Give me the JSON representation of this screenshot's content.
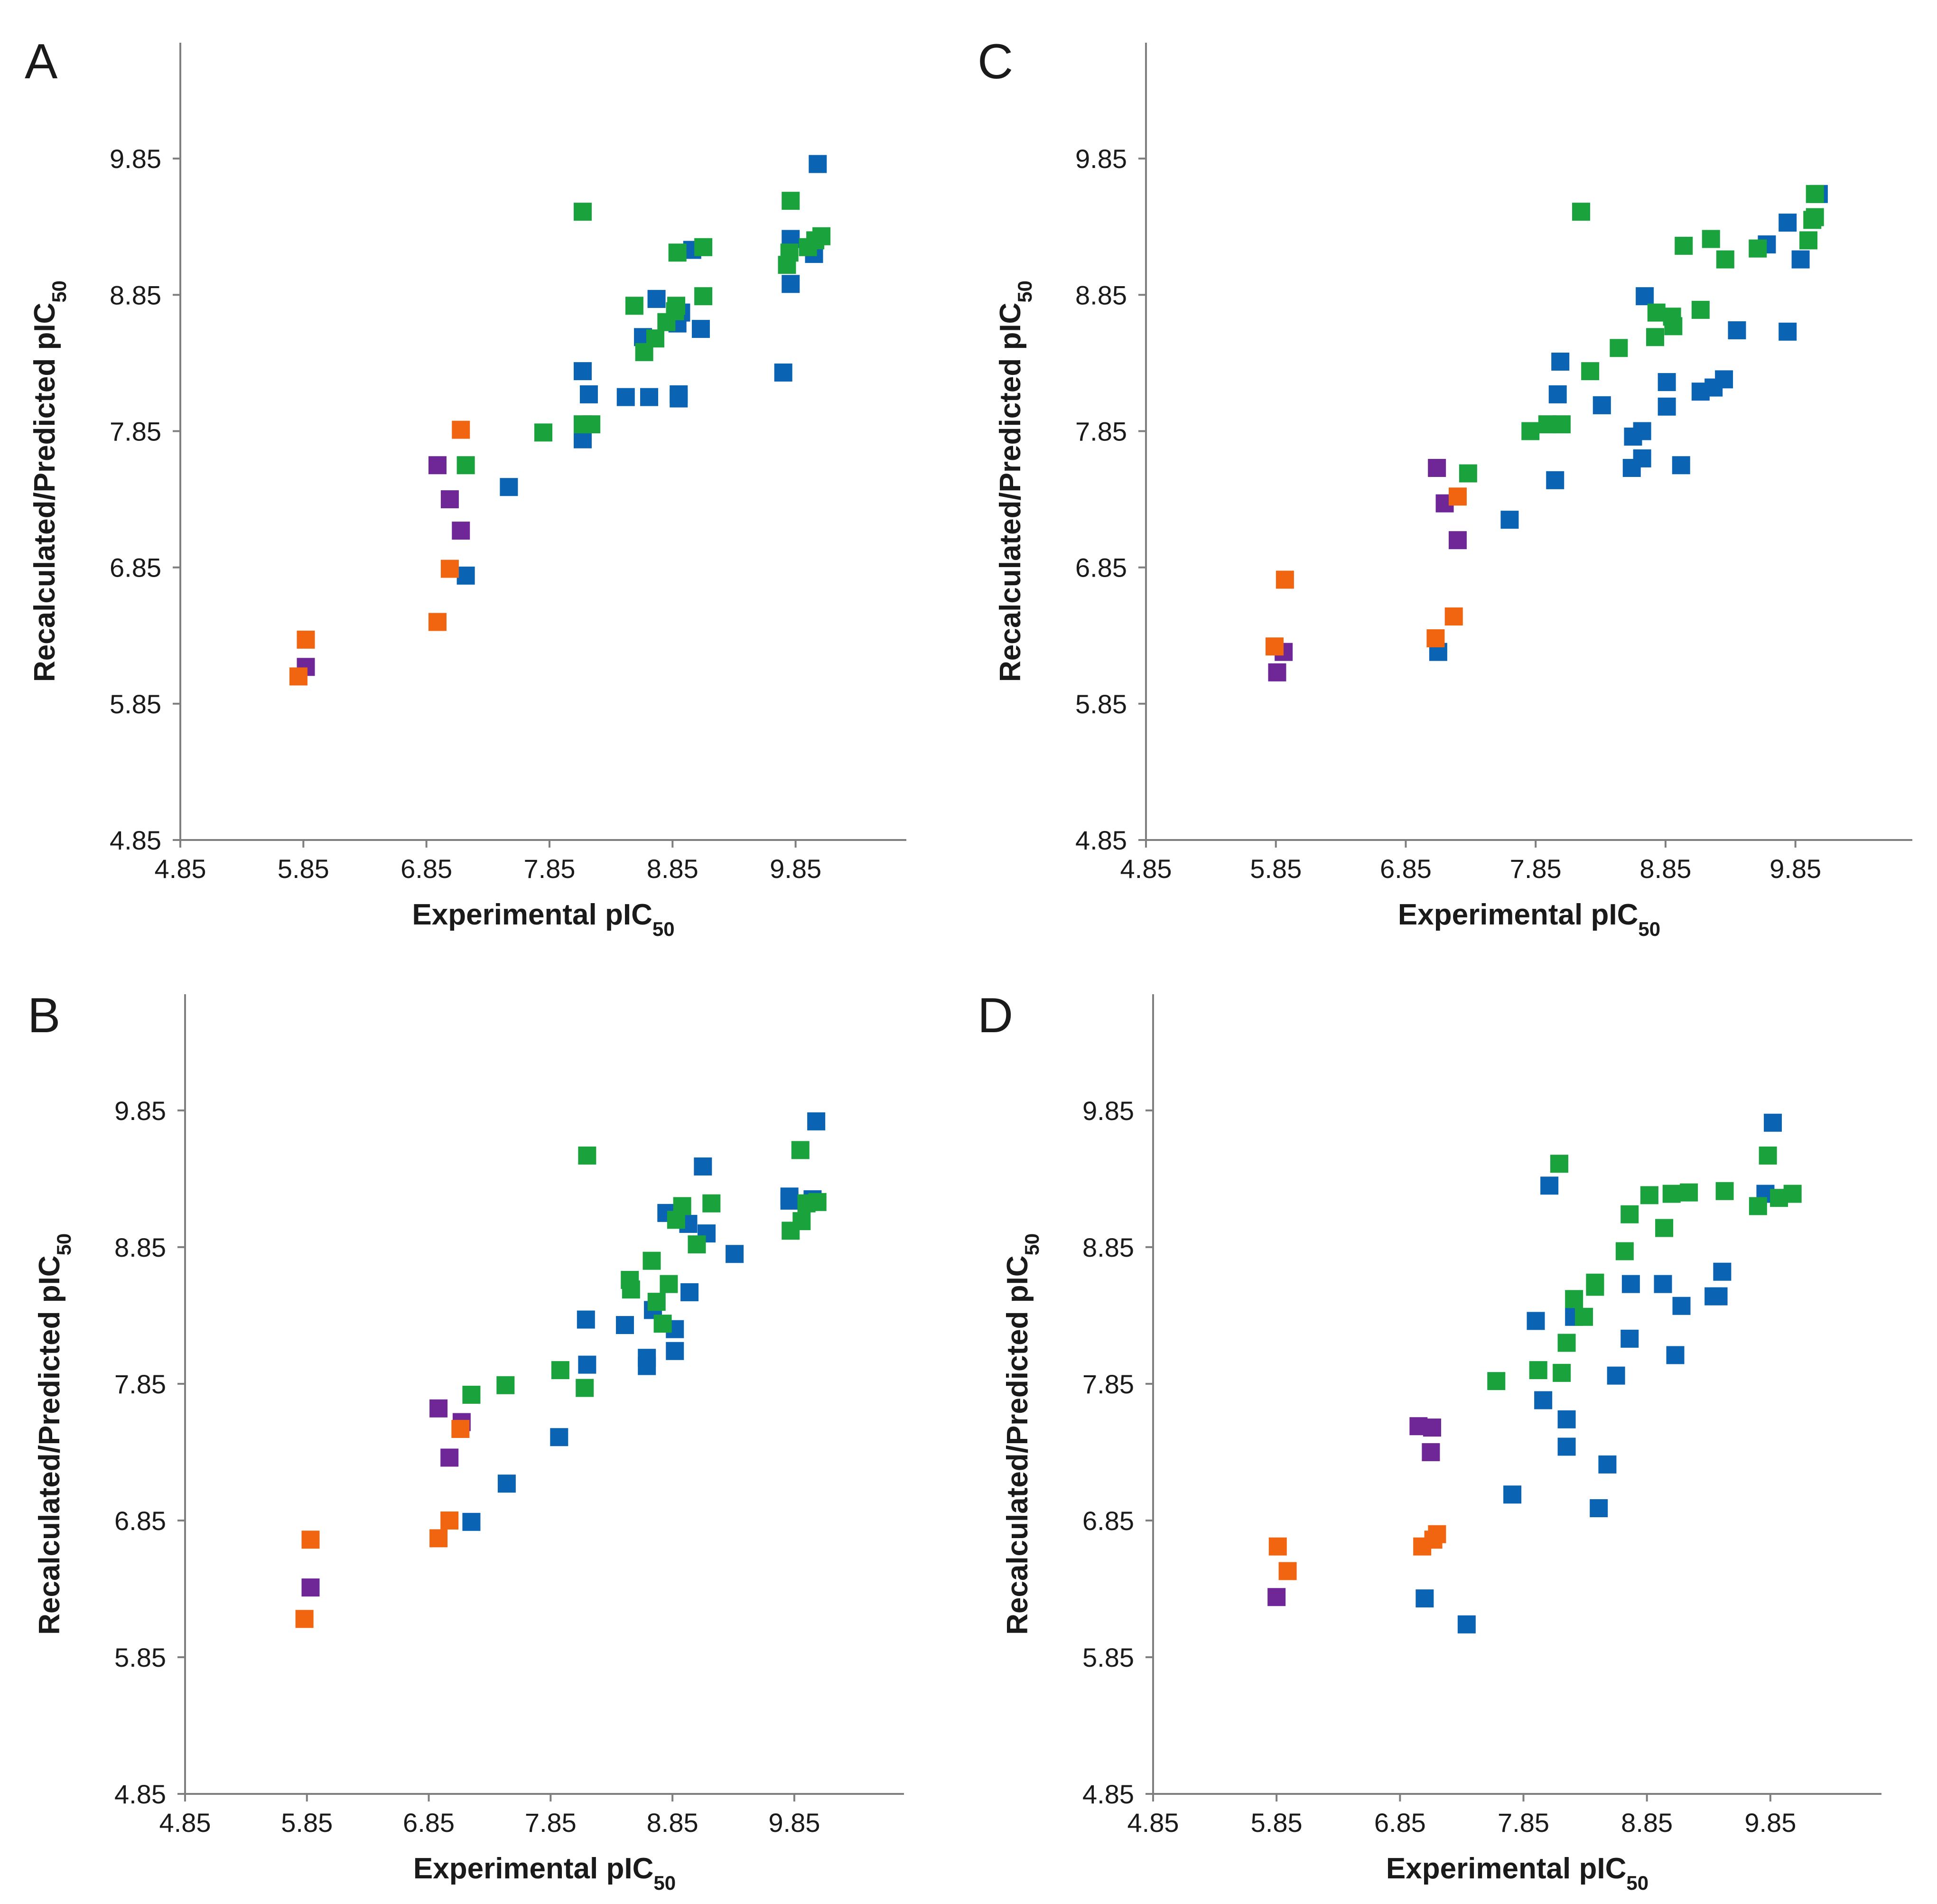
{
  "colors": {
    "blue": "#0b63b3",
    "green": "#1aa33c",
    "purple": "#6f2797",
    "orange": "#f26510"
  },
  "chart_data": [
    {
      "panel": "A",
      "type": "scatter",
      "title": "",
      "xlabel": "Experimental pIC",
      "xlabel_sub": "50",
      "ylabel": "Recalculated/Predicted pIC",
      "ylabel_sub": "50",
      "xlim": [
        4.85,
        10.75
      ],
      "ylim": [
        4.85,
        10.7
      ],
      "xticks": [
        "4.85",
        "5.85",
        "6.85",
        "7.85",
        "8.85",
        "9.85"
      ],
      "yticks": [
        "4.85",
        "5.85",
        "6.85",
        "7.85",
        "8.85",
        "9.85"
      ],
      "series": [
        {
          "name": "blue",
          "color": "#0b63b3",
          "points": [
            [
              10.03,
              9.81
            ],
            [
              9.81,
              9.26
            ],
            [
              10.0,
              9.15
            ],
            [
              9.81,
              8.93
            ],
            [
              9.01,
              9.18
            ],
            [
              8.72,
              8.82
            ],
            [
              8.92,
              8.72
            ],
            [
              9.08,
              8.6
            ],
            [
              8.61,
              8.54
            ],
            [
              8.89,
              8.64
            ],
            [
              9.75,
              8.28
            ],
            [
              8.12,
              8.29
            ],
            [
              8.17,
              8.12
            ],
            [
              8.47,
              8.1
            ],
            [
              8.66,
              8.1
            ],
            [
              8.9,
              8.12
            ],
            [
              8.9,
              8.09
            ],
            [
              8.12,
              7.79
            ],
            [
              7.52,
              7.44
            ],
            [
              7.17,
              6.79
            ]
          ]
        },
        {
          "name": "green",
          "color": "#1aa33c",
          "points": [
            [
              8.12,
              9.46
            ],
            [
              9.81,
              9.54
            ],
            [
              10.06,
              9.28
            ],
            [
              10.01,
              9.25
            ],
            [
              9.95,
              9.2
            ],
            [
              9.1,
              9.2
            ],
            [
              8.89,
              9.16
            ],
            [
              9.8,
              9.16
            ],
            [
              9.78,
              9.07
            ],
            [
              8.54,
              8.77
            ],
            [
              9.1,
              8.84
            ],
            [
              8.88,
              8.77
            ],
            [
              8.87,
              8.73
            ],
            [
              8.8,
              8.65
            ],
            [
              8.71,
              8.53
            ],
            [
              8.62,
              8.43
            ],
            [
              8.19,
              7.9
            ],
            [
              8.12,
              7.9
            ],
            [
              7.8,
              7.84
            ],
            [
              7.17,
              7.6
            ]
          ]
        },
        {
          "name": "purple",
          "color": "#6f2797",
          "points": [
            [
              5.87,
              6.12
            ],
            [
              6.94,
              7.6
            ],
            [
              7.04,
              7.35
            ],
            [
              7.13,
              7.12
            ]
          ]
        },
        {
          "name": "orange",
          "color": "#f26510",
          "points": [
            [
              5.87,
              6.32
            ],
            [
              5.81,
              6.05
            ],
            [
              7.13,
              7.86
            ],
            [
              7.04,
              6.84
            ],
            [
              6.94,
              6.45
            ]
          ]
        }
      ]
    },
    {
      "panel": "C",
      "type": "scatter",
      "title": "",
      "xlabel": "Experimental pIC",
      "xlabel_sub": "50",
      "ylabel": "Recalculated/Predicted pIC",
      "ylabel_sub": "50",
      "xlim": [
        4.85,
        10.75
      ],
      "ylim": [
        4.85,
        10.7
      ],
      "xticks": [
        "4.85",
        "5.85",
        "6.85",
        "7.85",
        "8.85",
        "9.85"
      ],
      "yticks": [
        "4.85",
        "5.85",
        "6.85",
        "7.85",
        "8.85",
        "9.85"
      ],
      "series": [
        {
          "name": "blue",
          "color": "#0b63b3",
          "points": [
            [
              10.03,
              9.59
            ],
            [
              9.79,
              9.38
            ],
            [
              9.63,
              9.22
            ],
            [
              9.89,
              9.11
            ],
            [
              9.79,
              8.58
            ],
            [
              8.69,
              8.84
            ],
            [
              9.4,
              8.59
            ],
            [
              8.04,
              8.36
            ],
            [
              9.3,
              8.23
            ],
            [
              9.22,
              8.17
            ],
            [
              8.86,
              8.21
            ],
            [
              9.12,
              8.14
            ],
            [
              8.86,
              8.03
            ],
            [
              8.36,
              8.04
            ],
            [
              8.02,
              8.12
            ],
            [
              8.6,
              7.81
            ],
            [
              8.67,
              7.85
            ],
            [
              8.67,
              7.65
            ],
            [
              8.97,
              7.6
            ],
            [
              8.59,
              7.58
            ],
            [
              8.0,
              7.49
            ],
            [
              7.65,
              7.2
            ],
            [
              7.1,
              6.23
            ]
          ]
        },
        {
          "name": "green",
          "color": "#1aa33c",
          "points": [
            [
              8.2,
              9.46
            ],
            [
              10.0,
              9.59
            ],
            [
              10.0,
              9.42
            ],
            [
              9.98,
              9.4
            ],
            [
              9.95,
              9.25
            ],
            [
              9.2,
              9.26
            ],
            [
              8.99,
              9.21
            ],
            [
              9.56,
              9.19
            ],
            [
              9.31,
              9.11
            ],
            [
              8.78,
              8.72
            ],
            [
              9.12,
              8.74
            ],
            [
              8.9,
              8.69
            ],
            [
              8.91,
              8.62
            ],
            [
              8.77,
              8.54
            ],
            [
              8.49,
              8.46
            ],
            [
              8.27,
              8.29
            ],
            [
              8.05,
              7.9
            ],
            [
              7.94,
              7.9
            ],
            [
              7.81,
              7.85
            ],
            [
              7.33,
              7.54
            ]
          ]
        },
        {
          "name": "purple",
          "color": "#6f2797",
          "points": [
            [
              5.91,
              6.23
            ],
            [
              5.86,
              6.08
            ],
            [
              7.09,
              7.58
            ],
            [
              7.15,
              7.32
            ],
            [
              7.25,
              7.05
            ]
          ]
        },
        {
          "name": "orange",
          "color": "#f26510",
          "points": [
            [
              5.92,
              6.76
            ],
            [
              5.84,
              6.27
            ],
            [
              7.22,
              6.49
            ],
            [
              7.08,
              6.33
            ],
            [
              7.25,
              7.37
            ]
          ]
        }
      ]
    },
    {
      "panel": "B",
      "type": "scatter",
      "title": "",
      "xlabel": "Experimental pIC",
      "xlabel_sub": "50",
      "ylabel": "Recalculated/Predicted pIC",
      "ylabel_sub": "50",
      "xlim": [
        4.85,
        10.75
      ],
      "ylim": [
        4.85,
        10.7
      ],
      "xticks": [
        "4.85",
        "5.85",
        "6.85",
        "7.85",
        "8.85",
        "9.85"
      ],
      "yticks": [
        "4.85",
        "5.85",
        "6.85",
        "7.85",
        "8.85",
        "9.85"
      ],
      "series": [
        {
          "name": "blue",
          "color": "#0b63b3",
          "points": [
            [
              10.03,
              9.77
            ],
            [
              9.81,
              9.22
            ],
            [
              10.0,
              9.2
            ],
            [
              9.81,
              9.19
            ],
            [
              9.1,
              9.44
            ],
            [
              8.8,
              9.1
            ],
            [
              8.98,
              9.02
            ],
            [
              9.13,
              8.95
            ],
            [
              9.36,
              8.8
            ],
            [
              8.99,
              8.52
            ],
            [
              8.69,
              8.39
            ],
            [
              8.46,
              8.28
            ],
            [
              8.87,
              8.25
            ],
            [
              8.87,
              8.09
            ],
            [
              8.64,
              8.04
            ],
            [
              8.64,
              7.98
            ],
            [
              8.15,
              7.99
            ],
            [
              8.14,
              8.32
            ],
            [
              7.92,
              7.46
            ],
            [
              7.49,
              7.12
            ],
            [
              7.2,
              6.84
            ]
          ]
        },
        {
          "name": "green",
          "color": "#1aa33c",
          "points": [
            [
              8.15,
              9.52
            ],
            [
              9.9,
              9.56
            ],
            [
              10.04,
              9.18
            ],
            [
              9.95,
              9.17
            ],
            [
              9.91,
              9.04
            ],
            [
              9.17,
              9.17
            ],
            [
              8.93,
              9.15
            ],
            [
              8.88,
              9.05
            ],
            [
              9.82,
              8.97
            ],
            [
              8.68,
              8.75
            ],
            [
              9.05,
              8.87
            ],
            [
              8.82,
              8.58
            ],
            [
              8.51,
              8.54
            ],
            [
              8.5,
              8.61
            ],
            [
              8.72,
              8.45
            ],
            [
              8.77,
              8.29
            ],
            [
              8.13,
              7.82
            ],
            [
              7.93,
              7.95
            ],
            [
              7.48,
              7.84
            ],
            [
              7.2,
              7.77
            ]
          ]
        },
        {
          "name": "purple",
          "color": "#6f2797",
          "points": [
            [
              5.88,
              6.36
            ],
            [
              6.93,
              7.67
            ],
            [
              7.12,
              7.57
            ],
            [
              7.02,
              7.31
            ]
          ]
        },
        {
          "name": "orange",
          "color": "#f26510",
          "points": [
            [
              5.88,
              6.71
            ],
            [
              5.83,
              6.13
            ],
            [
              7.11,
              7.52
            ],
            [
              7.02,
              6.85
            ],
            [
              6.93,
              6.72
            ]
          ]
        }
      ]
    },
    {
      "panel": "D",
      "type": "scatter",
      "title": "",
      "xlabel": "Experimental pIC",
      "xlabel_sub": "50",
      "ylabel": "Recalculated/Predicted pIC",
      "ylabel_sub": "50",
      "xlim": [
        4.85,
        10.75
      ],
      "ylim": [
        4.85,
        10.7
      ],
      "xticks": [
        "4.85",
        "5.85",
        "6.85",
        "7.85",
        "8.85",
        "9.85"
      ],
      "yticks": [
        "4.85",
        "5.85",
        "6.85",
        "7.85",
        "8.85",
        "9.85"
      ],
      "series": [
        {
          "name": "blue",
          "color": "#0b63b3",
          "points": [
            [
              9.87,
              9.76
            ],
            [
              9.81,
              9.24
            ],
            [
              9.46,
              8.67
            ],
            [
              9.43,
              8.49
            ],
            [
              9.39,
              8.49
            ],
            [
              9.13,
              8.42
            ],
            [
              8.98,
              8.58
            ],
            [
              8.72,
              8.58
            ],
            [
              9.08,
              8.06
            ],
            [
              8.71,
              8.18
            ],
            [
              8.26,
              8.34
            ],
            [
              8.06,
              9.3
            ],
            [
              7.95,
              8.31
            ],
            [
              8.6,
              7.91
            ],
            [
              8.01,
              7.73
            ],
            [
              8.2,
              7.59
            ],
            [
              8.2,
              7.39
            ],
            [
              8.53,
              7.26
            ],
            [
              8.46,
              6.94
            ],
            [
              7.76,
              7.04
            ],
            [
              7.39,
              6.09
            ],
            [
              7.05,
              6.28
            ]
          ]
        },
        {
          "name": "green",
          "color": "#1aa33c",
          "points": [
            [
              8.14,
              9.46
            ],
            [
              9.83,
              9.52
            ],
            [
              10.03,
              9.24
            ],
            [
              9.92,
              9.21
            ],
            [
              9.48,
              9.26
            ],
            [
              9.19,
              9.25
            ],
            [
              9.05,
              9.24
            ],
            [
              8.87,
              9.23
            ],
            [
              9.75,
              9.15
            ],
            [
              8.99,
              8.99
            ],
            [
              8.71,
              9.09
            ],
            [
              8.67,
              8.82
            ],
            [
              8.43,
              8.59
            ],
            [
              8.43,
              8.56
            ],
            [
              8.26,
              8.47
            ],
            [
              8.34,
              8.34
            ],
            [
              8.2,
              8.15
            ],
            [
              8.16,
              7.93
            ],
            [
              7.97,
              7.95
            ],
            [
              7.63,
              7.87
            ]
          ]
        },
        {
          "name": "purple",
          "color": "#6f2797",
          "points": [
            [
              5.85,
              6.29
            ],
            [
              7.11,
              7.53
            ],
            [
              7.1,
              7.35
            ],
            [
              7.0,
              7.54
            ]
          ]
        },
        {
          "name": "orange",
          "color": "#f26510",
          "points": [
            [
              5.86,
              6.66
            ],
            [
              5.94,
              6.48
            ],
            [
              7.12,
              6.71
            ],
            [
              7.03,
              6.66
            ],
            [
              7.15,
              6.75
            ]
          ]
        }
      ]
    }
  ]
}
